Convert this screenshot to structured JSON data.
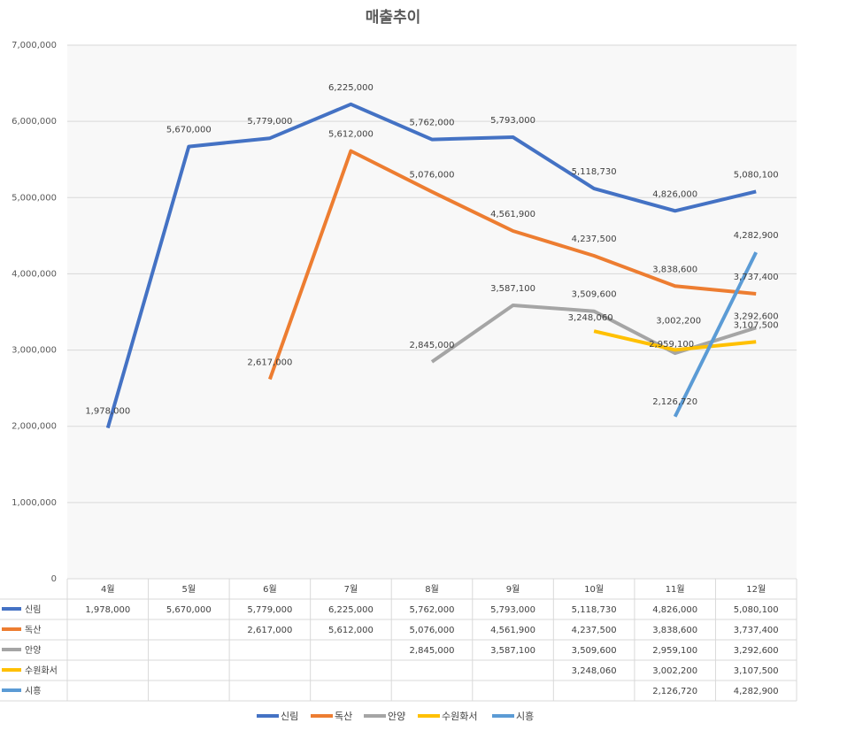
{
  "colors": {
    "plot_bg": "#f8f8f8",
    "grid": "#d9d9d9",
    "table_border": "#d9d9d9",
    "series": [
      "#4472c4",
      "#ed7d31",
      "#a5a5a5",
      "#ffc000",
      "#5b9bd5"
    ]
  },
  "chart_data": {
    "type": "line",
    "title": "매출추이",
    "categories": [
      "4월",
      "5월",
      "6월",
      "7월",
      "8월",
      "9월",
      "10월",
      "11월",
      "12월"
    ],
    "ylim": [
      0,
      7000000
    ],
    "yticks": [
      "0",
      "1,000,000",
      "2,000,000",
      "3,000,000",
      "4,000,000",
      "5,000,000",
      "6,000,000",
      "7,000,000"
    ],
    "grid": true,
    "legend": "bottom",
    "data_table": true,
    "series": [
      {
        "name": "신림",
        "values": [
          1978000,
          5670000,
          5779000,
          6225000,
          5762000,
          5793000,
          5118730,
          4826000,
          5080100
        ],
        "labels": [
          "1,978,000",
          "5,670,000",
          "5,779,000",
          "6,225,000",
          "5,762,000",
          "5,793,000",
          "5,118,730",
          "4,826,000",
          "5,080,100"
        ]
      },
      {
        "name": "독산",
        "values": [
          null,
          null,
          2617000,
          5612000,
          5076000,
          4561900,
          4237500,
          3838600,
          3737400
        ],
        "labels": [
          "",
          "",
          "2,617,000",
          "5,612,000",
          "5,076,000",
          "4,561,900",
          "4,237,500",
          "3,838,600",
          "3,737,400"
        ]
      },
      {
        "name": "안양",
        "values": [
          null,
          null,
          null,
          null,
          2845000,
          3587100,
          3509600,
          2959100,
          3292600
        ],
        "labels": [
          "",
          "",
          "",
          "",
          "2,845,000",
          "3,587,100",
          "3,509,600",
          "2,959,100",
          "3,292,600"
        ]
      },
      {
        "name": "수원화서",
        "values": [
          null,
          null,
          null,
          null,
          null,
          null,
          3248060,
          3002200,
          3107500
        ],
        "labels": [
          "",
          "",
          "",
          "",
          "",
          "",
          "3,248,060",
          "3,002,200",
          "3,107,500"
        ]
      },
      {
        "name": "시흥",
        "values": [
          null,
          null,
          null,
          null,
          null,
          null,
          null,
          2126720,
          4282900
        ],
        "labels": [
          "",
          "",
          "",
          "",
          "",
          "",
          "",
          "2,126,720",
          "4,282,900"
        ]
      }
    ]
  }
}
